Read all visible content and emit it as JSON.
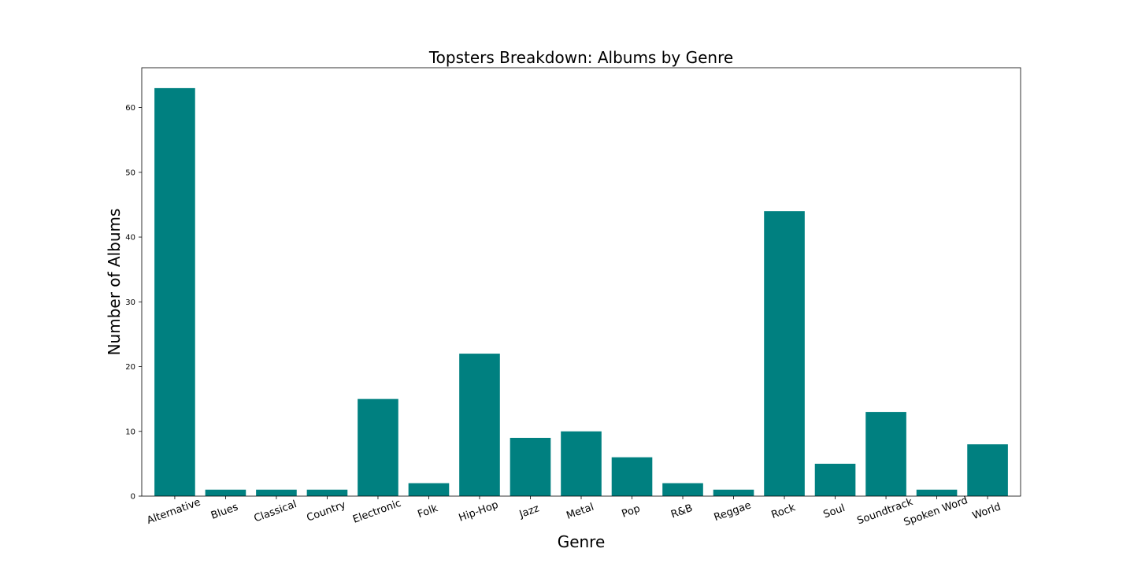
{
  "chart_data": {
    "type": "bar",
    "title": "Topsters Breakdown: Albums by Genre",
    "xlabel": "Genre",
    "ylabel": "Number of Albums",
    "categories": [
      "Alternative",
      "Blues",
      "Classical",
      "Country",
      "Electronic",
      "Folk",
      "Hip-Hop",
      "Jazz",
      "Metal",
      "Pop",
      "R&B",
      "Reggae",
      "Rock",
      "Soul",
      "Soundtrack",
      "Spoken Word",
      "World"
    ],
    "values": [
      63,
      1,
      1,
      1,
      15,
      2,
      22,
      9,
      10,
      6,
      2,
      1,
      44,
      5,
      13,
      1,
      8
    ],
    "ylim": [
      0,
      66.15
    ],
    "yticks": [
      0,
      10,
      20,
      30,
      40,
      50,
      60
    ],
    "xtick_rotation_deg": 20,
    "grid": false,
    "bar_color": "#008080"
  }
}
